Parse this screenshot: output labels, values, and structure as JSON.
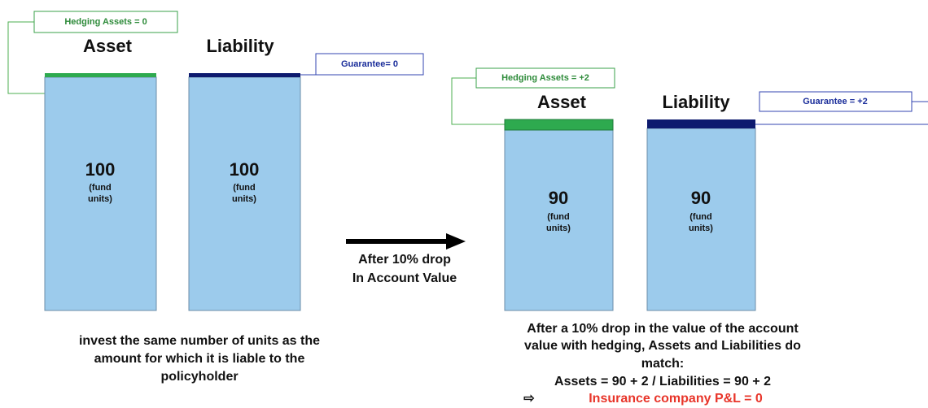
{
  "left": {
    "hedging": "Hedging Assets = 0",
    "guarantee": "Guarantee= 0",
    "asset": {
      "label": "Asset",
      "value": "100",
      "unit": [
        "(fund",
        "units)"
      ]
    },
    "liability": {
      "label": "Liability",
      "value": "100",
      "unit": [
        "(fund",
        "units)"
      ]
    },
    "caption": [
      "invest the same number of units as the",
      "amount for which it is liable to the",
      "policyholder"
    ]
  },
  "arrow": [
    "After 10% drop",
    "In Account Value"
  ],
  "right": {
    "hedging": "Hedging Assets = +2",
    "guarantee": "Guarantee = +2",
    "asset": {
      "label": "Asset",
      "value": "90",
      "unit": [
        "(fund",
        "units)"
      ]
    },
    "liability": {
      "label": "Liability",
      "value": "90",
      "unit": [
        "(fund",
        "units)"
      ]
    },
    "caption": [
      "After a 10% drop in the value of the account",
      "value with hedging, Assets and Liabilities do",
      "match:",
      "Assets = 90 + 2 / Liabilities  = 90 + 2"
    ],
    "result": {
      "symbol": "⇨",
      "text": "Insurance company P&L = 0"
    }
  }
}
